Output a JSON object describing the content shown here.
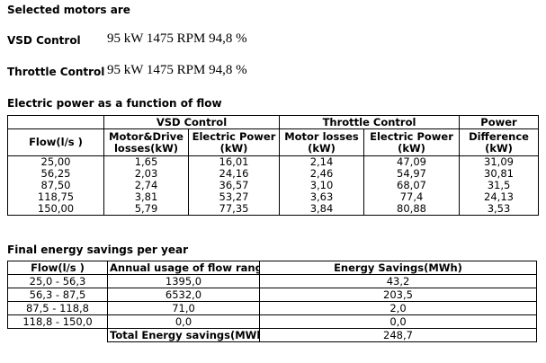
{
  "heading": "Selected motors are",
  "vsd": {
    "label": "VSD Control",
    "spec": "95 kW 1475 RPM 94,8 %"
  },
  "throttle": {
    "label": "Throttle Control",
    "spec": "95 kW 1475 RPM 94,8 %"
  },
  "power_table": {
    "title": "Electric power as a function of flow",
    "group_headers": {
      "vsd": "VSD Control",
      "throttle": "Throttle Control",
      "power": "Power"
    },
    "col_headers": {
      "flow": "Flow(l/s )",
      "vsd_losses": [
        "Motor&Drive",
        "losses(kW)"
      ],
      "vsd_power": [
        "Electric Power",
        "(kW)"
      ],
      "thr_losses": [
        "Motor losses",
        "(kW)"
      ],
      "thr_power": [
        "Electric Power",
        "(kW)"
      ],
      "diff": [
        "Difference",
        "(kW)"
      ]
    },
    "rows": [
      [
        "25,00",
        "1,65",
        "16,01",
        "2,14",
        "47,09",
        "31,09"
      ],
      [
        "56,25",
        "2,03",
        "24,16",
        "2,46",
        "54,97",
        "30,81"
      ],
      [
        "87,50",
        "2,74",
        "36,57",
        "3,10",
        "68,07",
        "31,5"
      ],
      [
        "118,75",
        "3,81",
        "53,27",
        "3,63",
        "77,4",
        "24,13"
      ],
      [
        "150,00",
        "5,79",
        "77,35",
        "3,84",
        "80,88",
        "3,53"
      ]
    ]
  },
  "savings_table": {
    "title": "Final energy savings per year",
    "headers": {
      "flow": "Flow(l/s )",
      "usage": "Annual usage of flow range",
      "savings": "Energy Savings(MWh)"
    },
    "rows": [
      [
        "25,0 - 56,3",
        "1395,0",
        "43,2"
      ],
      [
        "56,3 - 87,5",
        "6532,0",
        "203,5"
      ],
      [
        "87,5 - 118,8",
        "71,0",
        "2,0"
      ],
      [
        "118,8 - 150,0",
        "0,0",
        "0,0"
      ]
    ],
    "total_label": "Total Energy savings(MWh)",
    "total_value": "248,7"
  }
}
